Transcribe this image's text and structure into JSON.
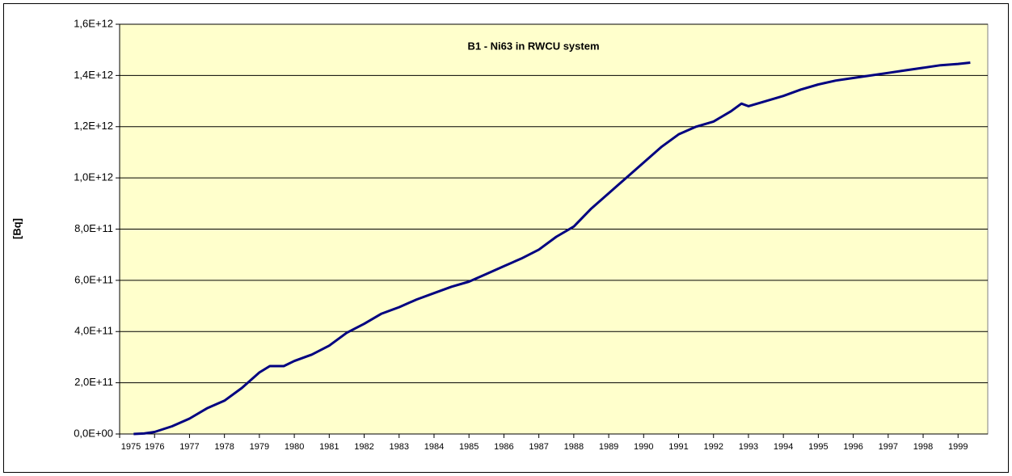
{
  "chart_data": {
    "type": "line",
    "title": "B1 - Ni63 in RWCU system",
    "ylabel": "[Bq]",
    "x": [
      1975.4,
      1975.7,
      1976.0,
      1976.5,
      1977.0,
      1977.5,
      1978.0,
      1978.5,
      1979.0,
      1979.3,
      1979.7,
      1980.0,
      1980.5,
      1981.0,
      1981.5,
      1982.0,
      1982.5,
      1983.0,
      1983.5,
      1984.0,
      1984.5,
      1985.0,
      1985.5,
      1986.0,
      1986.5,
      1987.0,
      1987.5,
      1988.0,
      1988.5,
      1989.0,
      1989.5,
      1990.0,
      1990.5,
      1991.0,
      1991.5,
      1992.0,
      1992.5,
      1992.8,
      1993.0,
      1993.5,
      1994.0,
      1994.5,
      1995.0,
      1995.5,
      1996.0,
      1996.5,
      1997.0,
      1997.5,
      1998.0,
      1998.5,
      1999.0,
      1999.35
    ],
    "series": [
      {
        "name": "Ni63",
        "color": "#000080",
        "values": [
          0,
          2000000000.0,
          8000000000.0,
          30000000000.0,
          60000000000.0,
          100000000000.0,
          130000000000.0,
          180000000000.0,
          240000000000.0,
          265000000000.0,
          265000000000.0,
          285000000000.0,
          310000000000.0,
          345000000000.0,
          395000000000.0,
          430000000000.0,
          470000000000.0,
          495000000000.0,
          525000000000.0,
          550000000000.0,
          575000000000.0,
          595000000000.0,
          625000000000.0,
          655000000000.0,
          685000000000.0,
          720000000000.0,
          770000000000.0,
          810000000000.0,
          880000000000.0,
          940000000000.0,
          1000000000000.0,
          1060000000000.0,
          1120000000000.0,
          1170000000000.0,
          1200000000000.0,
          1220000000000.0,
          1260000000000.0,
          1290000000000.0,
          1280000000000.0,
          1300000000000.0,
          1320000000000.0,
          1345000000000.0,
          1365000000000.0,
          1380000000000.0,
          1390000000000.0,
          1400000000000.0,
          1410000000000.0,
          1420000000000.0,
          1430000000000.0,
          1440000000000.0,
          1445000000000.0,
          1450000000000.0
        ]
      }
    ],
    "xlim": [
      1975,
      1999.85
    ],
    "xticks": [
      1975,
      1976,
      1977,
      1978,
      1979,
      1980,
      1981,
      1982,
      1983,
      1984,
      1985,
      1986,
      1987,
      1988,
      1989,
      1990,
      1991,
      1992,
      1993,
      1994,
      1995,
      1996,
      1997,
      1998,
      1999
    ],
    "ylim": [
      0,
      1600000000000.0
    ],
    "yticks": [
      {
        "value": 0,
        "label": "0,0E+00"
      },
      {
        "value": 200000000000.0,
        "label": "2,0E+11"
      },
      {
        "value": 400000000000.0,
        "label": "4,0E+11"
      },
      {
        "value": 600000000000.0,
        "label": "6,0E+11"
      },
      {
        "value": 800000000000.0,
        "label": "8,0E+11"
      },
      {
        "value": 1000000000000.0,
        "label": "1,0E+12"
      },
      {
        "value": 1200000000000.0,
        "label": "1,2E+12"
      },
      {
        "value": 1400000000000.0,
        "label": "1,4E+12"
      },
      {
        "value": 1600000000000.0,
        "label": "1,6E+12"
      }
    ],
    "grid": true,
    "background": "#ffffcc"
  }
}
